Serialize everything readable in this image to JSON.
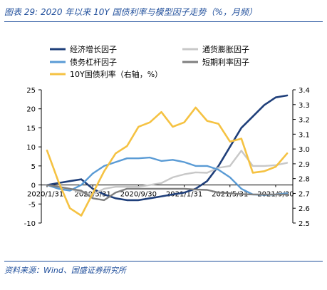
{
  "header": {
    "title": "图表 29: 2020 年以来 10Y 国债利率与模型因子走势（%，月频）"
  },
  "footer": {
    "source": "资料来源：Wind、国盛证券研究所"
  },
  "chart_data": {
    "type": "line",
    "x": [
      "2020/1/31",
      "2020/2/29",
      "2020/3/31",
      "2020/4/30",
      "2020/5/31",
      "2020/6/30",
      "2020/7/31",
      "2020/8/31",
      "2020/9/30",
      "2020/10/31",
      "2020/11/30",
      "2020/12/31",
      "2021/1/31",
      "2021/2/28",
      "2021/3/31",
      "2021/4/30",
      "2021/5/31",
      "2021/6/30",
      "2021/7/31",
      "2021/8/31",
      "2021/9/30",
      "2021/10/31"
    ],
    "x_tick_labels": [
      "2020/1/31",
      "2020/5/31",
      "2020/9/30",
      "2021/1/31",
      "2021/5/31",
      "2021/9/30"
    ],
    "left_axis": {
      "ylim": [
        -10,
        25
      ],
      "ticks": [
        "25",
        "20",
        "15",
        "10",
        "5",
        "0",
        "-5",
        "-10"
      ]
    },
    "right_axis": {
      "ylim": [
        2.5,
        3.4
      ],
      "ticks": [
        "3.4",
        "3.3",
        "3.2",
        "3.1",
        "3.0",
        "2.9",
        "2.8",
        "2.7",
        "2.6",
        "2.5"
      ]
    },
    "series": [
      {
        "name": "经济增长因子",
        "axis": "left",
        "color": "#1f3f7a",
        "values": [
          0,
          0.5,
          1,
          1.5,
          -1,
          -2.5,
          -3.5,
          -4,
          -4,
          -3.5,
          -3,
          -2.5,
          -2,
          -1,
          1,
          5,
          10,
          15,
          18,
          21,
          23,
          23.5
        ]
      },
      {
        "name": "通货膨胀因子",
        "axis": "left",
        "color": "#c8c8c8",
        "values": [
          0,
          -0.5,
          -1,
          -2,
          -2.5,
          -1,
          -0.5,
          -0.5,
          -0.5,
          0,
          0.5,
          2,
          2.8,
          3.3,
          3.2,
          4.5,
          5,
          9,
          5,
          5,
          5.2,
          5.8
        ]
      },
      {
        "name": "债务杠杆因子",
        "axis": "left",
        "color": "#5a9bd5",
        "values": [
          0,
          -1,
          -1.5,
          0,
          3,
          5,
          6,
          7,
          7,
          7.2,
          6.3,
          6.6,
          6,
          5,
          5,
          4,
          2,
          -1,
          -2.5,
          -2.6,
          -2.5,
          -2.2
        ]
      },
      {
        "name": "短期利率因子",
        "axis": "left",
        "color": "#7f7f7f",
        "values": [
          0,
          -0.5,
          -1,
          -1.5,
          -3.5,
          -4,
          -2,
          -1,
          -1,
          -1,
          -1,
          -1,
          -1,
          -1.2,
          -1.3,
          -2,
          -2.2,
          -2.4,
          -2.5,
          -2.5,
          -2.5,
          -2.5
        ]
      },
      {
        "name": "10Y国债利率（右轴，%）",
        "axis": "right",
        "color": "#f5c242",
        "values": [
          2.99,
          2.78,
          2.6,
          2.55,
          2.7,
          2.85,
          2.97,
          3.02,
          3.15,
          3.18,
          3.25,
          3.15,
          3.18,
          3.28,
          3.19,
          3.17,
          3.05,
          3.07,
          2.84,
          2.85,
          2.88,
          2.97
        ]
      }
    ],
    "legend": {
      "placement": "top",
      "items": [
        {
          "label": "经济增长因子",
          "color": "#1f3f7a"
        },
        {
          "label": "通货膨胀因子",
          "color": "#c8c8c8"
        },
        {
          "label": "债务杠杆因子",
          "color": "#5a9bd5"
        },
        {
          "label": "短期利率因子",
          "color": "#7f7f7f"
        },
        {
          "label": "10Y国债利率（右轴，%）",
          "color": "#f5c242"
        }
      ]
    },
    "grid": false
  }
}
